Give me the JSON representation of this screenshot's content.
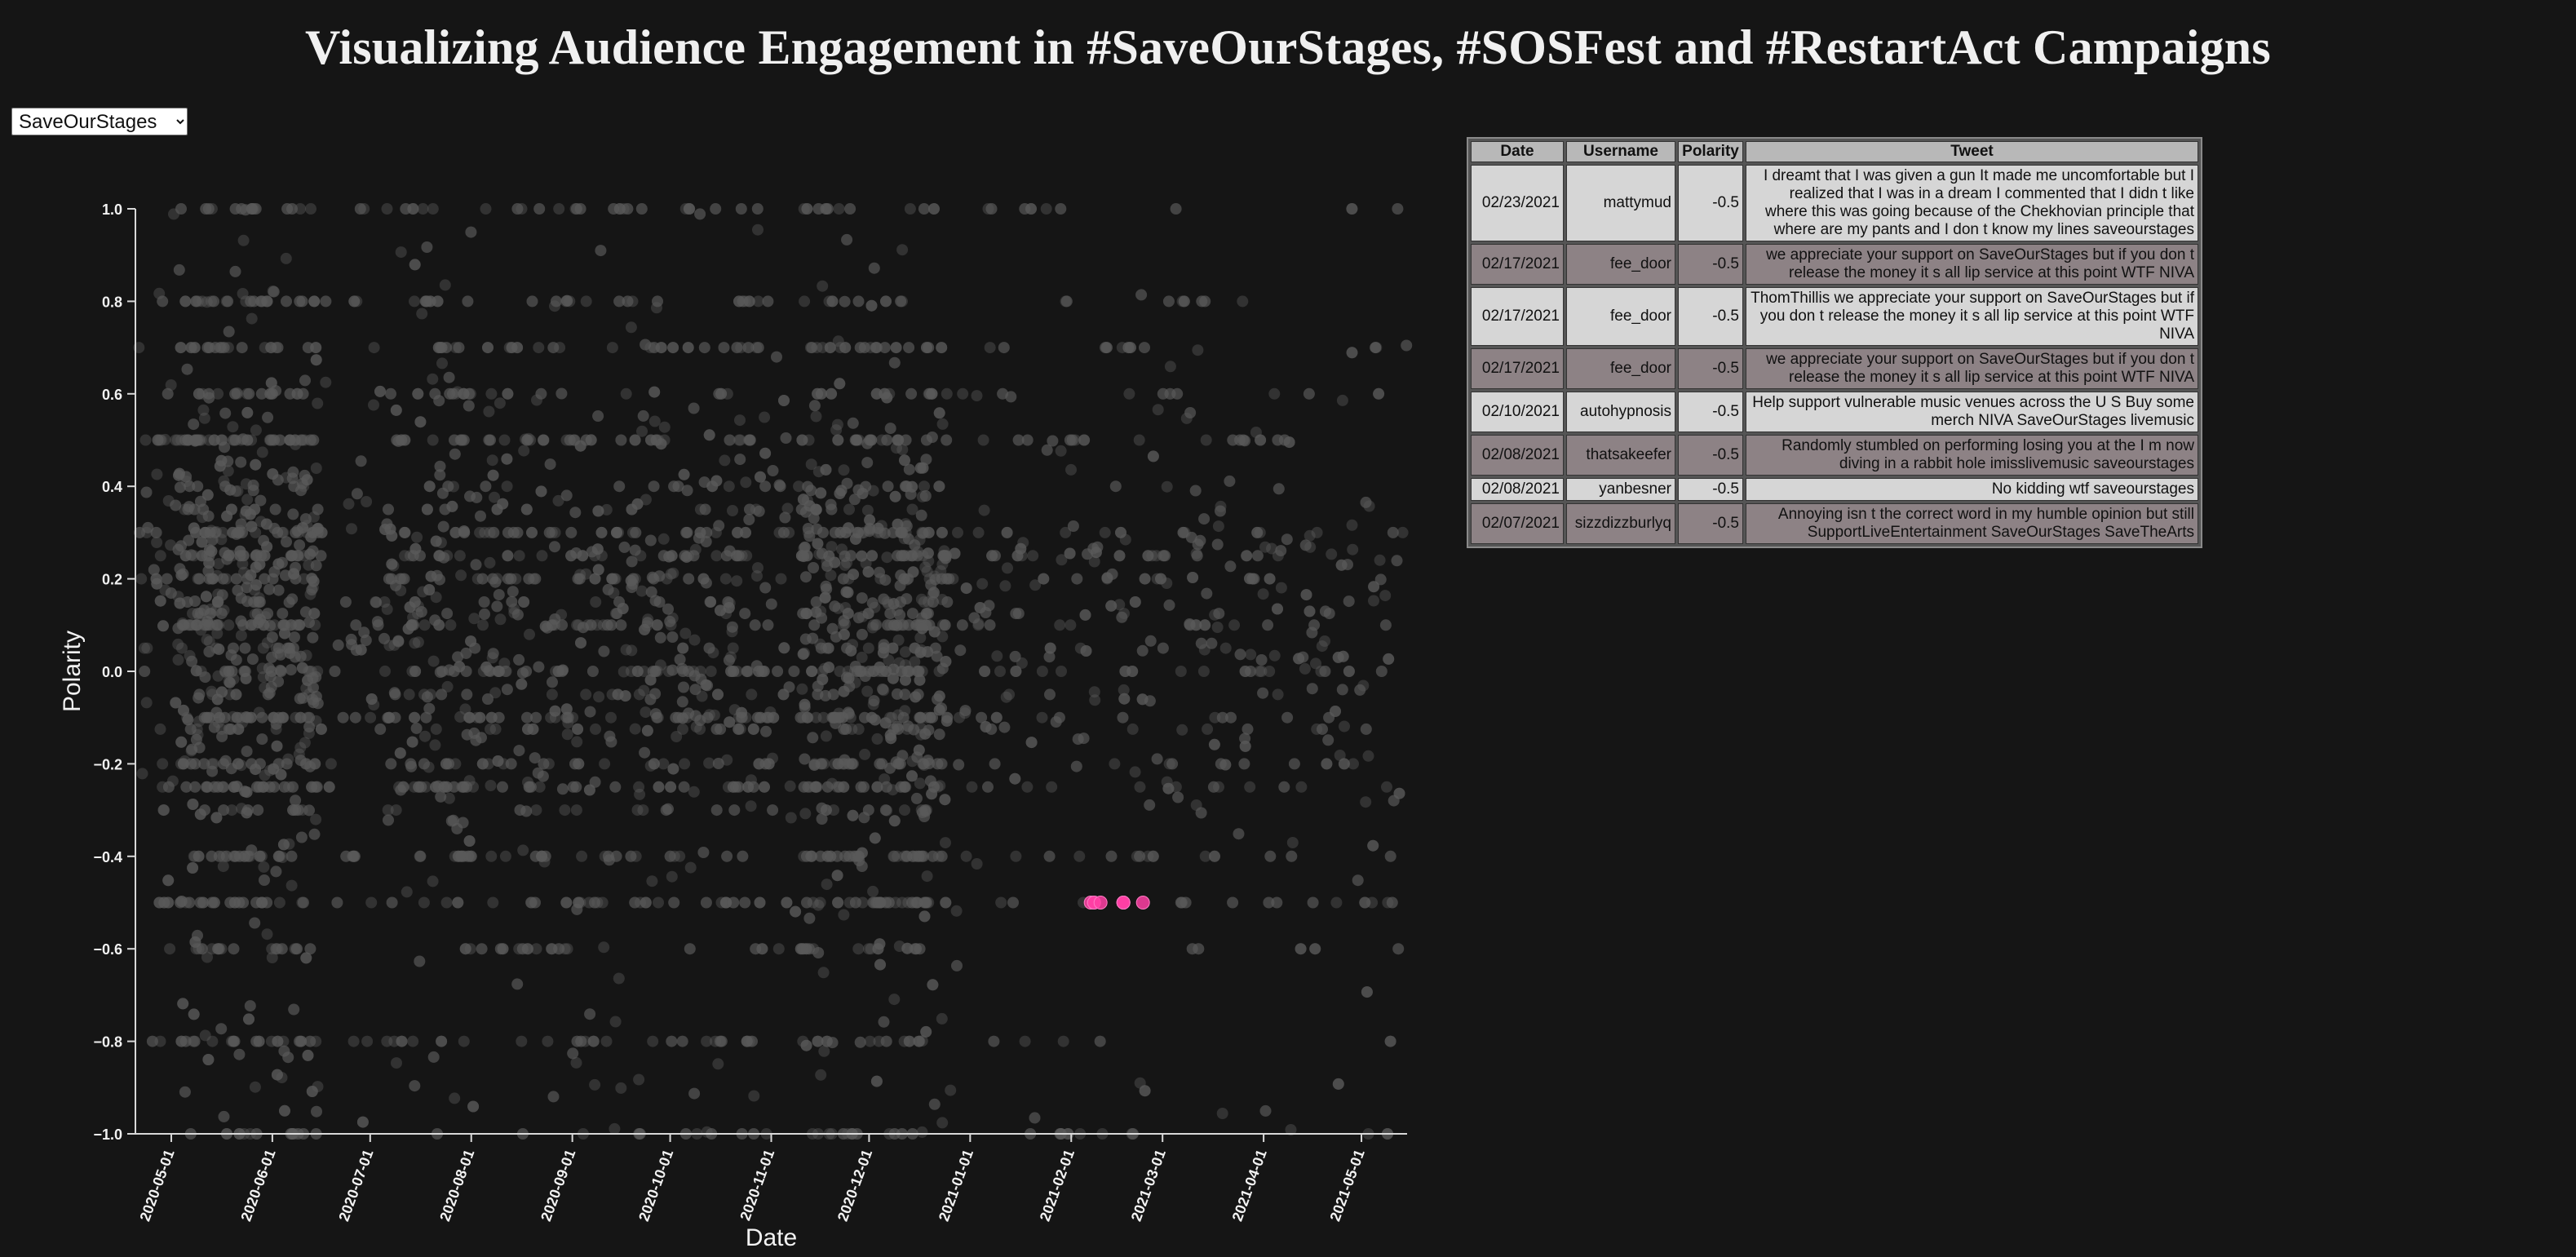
{
  "title": "Visualizing Audience Engagement in #SaveOurStages, #SOSFest and #RestartAct Campaigns",
  "campaign_select": {
    "selected": "SaveOurStages",
    "options": [
      "SaveOurStages"
    ]
  },
  "colors": {
    "background": "#151515",
    "point": "#5a5a5a",
    "highlight": "#ff3fa4"
  },
  "chart_data": {
    "type": "scatter",
    "xlabel": "Date",
    "ylabel": "Polarity",
    "xlim": [
      "2020-04-20",
      "2021-05-15"
    ],
    "ylim": [
      -1.0,
      1.0
    ],
    "x_ticks": [
      "2020-05-01",
      "2020-06-01",
      "2020-07-01",
      "2020-08-01",
      "2020-09-01",
      "2020-10-01",
      "2020-11-01",
      "2020-12-01",
      "2021-01-01",
      "2021-02-01",
      "2021-03-01",
      "2021-04-01",
      "2021-05-01"
    ],
    "y_ticks": [
      -1.0,
      -0.8,
      -0.6,
      -0.4,
      -0.2,
      0.0,
      0.2,
      0.4,
      0.6,
      0.8,
      1.0
    ],
    "y_tick_labels": [
      "−1.0",
      "−0.8",
      "−0.6",
      "−0.4",
      "−0.2",
      "0.0",
      "0.2",
      "0.4",
      "0.6",
      "0.8",
      "1.0"
    ],
    "grid": false,
    "background_series": {
      "name": "",
      "date_range": [
        "2020-04-21",
        "2021-05-15"
      ],
      "common_polarity_levels": [
        0.0,
        0.1,
        0.2,
        0.25,
        0.3,
        0.5,
        0.6,
        0.7,
        0.8,
        1.0,
        -0.1,
        -0.2,
        -0.25,
        -0.4,
        -0.5,
        -0.6,
        -0.8,
        -1.0
      ],
      "dense_periods": [
        [
          "2020-05-03",
          "2020-06-15"
        ],
        [
          "2020-07-05",
          "2020-10-31"
        ],
        [
          "2020-11-10",
          "2020-12-25"
        ]
      ]
    },
    "highlighted_points": [
      {
        "date": "2021-02-07",
        "polarity": -0.5
      },
      {
        "date": "2021-02-08",
        "polarity": -0.5
      },
      {
        "date": "2021-02-08",
        "polarity": -0.5
      },
      {
        "date": "2021-02-10",
        "polarity": -0.5
      },
      {
        "date": "2021-02-17",
        "polarity": -0.5
      },
      {
        "date": "2021-02-17",
        "polarity": -0.5
      },
      {
        "date": "2021-02-17",
        "polarity": -0.5
      },
      {
        "date": "2021-02-23",
        "polarity": -0.5
      }
    ]
  },
  "table": {
    "headers": {
      "date": "Date",
      "username": "Username",
      "polarity": "Polarity",
      "tweet": "Tweet"
    },
    "rows": [
      {
        "date": "02/23/2021",
        "username": "mattymud",
        "polarity": "-0.5",
        "tweet": "I dreamt that I was given a gun It made me uncomfortable but I realized that I was in a dream I commented that I didn t like where this was going because of the Chekhovian principle that where are my pants and I don t know my lines saveourstages"
      },
      {
        "date": "02/17/2021",
        "username": "fee_door",
        "polarity": "-0.5",
        "tweet": "we appreciate your support on SaveOurStages but if you don t release the money it s all lip service at this point WTF NIVA"
      },
      {
        "date": "02/17/2021",
        "username": "fee_door",
        "polarity": "-0.5",
        "tweet": "ThomThillis we appreciate your support on SaveOurStages but if you don t release the money it s all lip service at this point WTF NIVA"
      },
      {
        "date": "02/17/2021",
        "username": "fee_door",
        "polarity": "-0.5",
        "tweet": "we appreciate your support on SaveOurStages but if you don t release the money it s all lip service at this point WTF NIVA"
      },
      {
        "date": "02/10/2021",
        "username": "autohypnosis",
        "polarity": "-0.5",
        "tweet": "Help support vulnerable music venues across the U S Buy some merch NIVA SaveOurStages livemusic"
      },
      {
        "date": "02/08/2021",
        "username": "thatsakeefer",
        "polarity": "-0.5",
        "tweet": "Randomly stumbled on performing losing you at the I m now diving in a rabbit hole imisslivemusic saveourstages"
      },
      {
        "date": "02/08/2021",
        "username": "yanbesner",
        "polarity": "-0.5",
        "tweet": "No kidding wtf saveourstages"
      },
      {
        "date": "02/07/2021",
        "username": "sizzdizzburlyq",
        "polarity": "-0.5",
        "tweet": "Annoying isn t the correct word in my humble opinion but still SupportLiveEntertainment SaveOurStages SaveTheArts"
      }
    ]
  }
}
